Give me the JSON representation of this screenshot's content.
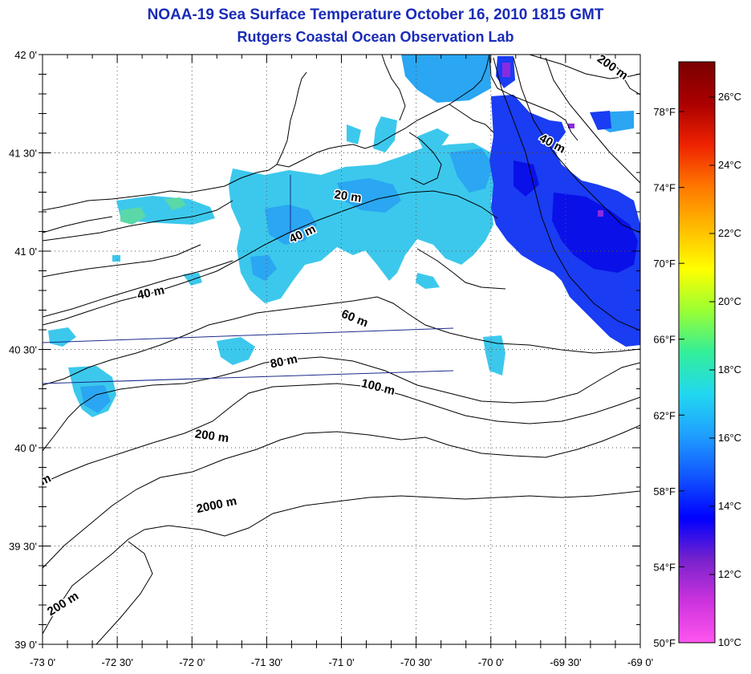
{
  "header": {
    "title": "NOAA-19 Sea Surface Temperature October 16, 2010 1815 GMT",
    "subtitle": "Rutgers Coastal Ocean Observation Lab"
  },
  "map": {
    "lon_range": [
      -73.0,
      -69.0
    ],
    "lat_range": [
      39.0,
      42.0
    ],
    "grid": "dotted",
    "lat_labels": [
      {
        "lat": 42.0,
        "text": "42 0'"
      },
      {
        "lat": 41.5,
        "text": "41 30'"
      },
      {
        "lat": 41.0,
        "text": "41 0'"
      },
      {
        "lat": 40.5,
        "text": "40 30'"
      },
      {
        "lat": 40.0,
        "text": "40 0'"
      },
      {
        "lat": 39.5,
        "text": "39 30'"
      },
      {
        "lat": 39.0,
        "text": "39 0'"
      }
    ],
    "lon_labels": [
      {
        "lon": -73.0,
        "text": "-73 0'"
      },
      {
        "lon": -72.5,
        "text": "-72 30'"
      },
      {
        "lon": -72.0,
        "text": "-72 0'"
      },
      {
        "lon": -71.5,
        "text": "-71 30'"
      },
      {
        "lon": -71.0,
        "text": "-71 0'"
      },
      {
        "lon": -70.5,
        "text": "-70 30'"
      },
      {
        "lon": -70.0,
        "text": "-70 0'"
      },
      {
        "lon": -69.5,
        "text": "-69 30'"
      },
      {
        "lon": -69.0,
        "text": "-69 0'"
      }
    ],
    "depth_labels": [
      {
        "text": "200 m",
        "lon": -69.2,
        "lat": 41.92,
        "rot": 35
      },
      {
        "text": "40 m",
        "lon": -69.6,
        "lat": 41.53,
        "rot": 28
      },
      {
        "text": "20 m",
        "lon": -70.96,
        "lat": 41.26,
        "rot": 8
      },
      {
        "text": "40 m",
        "lon": -71.25,
        "lat": 41.07,
        "rot": -25
      },
      {
        "text": "40 m",
        "lon": -72.27,
        "lat": 40.77,
        "rot": -12
      },
      {
        "text": "60 m",
        "lon": -70.92,
        "lat": 40.64,
        "rot": 22
      },
      {
        "text": "80 m",
        "lon": -71.38,
        "lat": 40.42,
        "rot": -12
      },
      {
        "text": "100 m",
        "lon": -70.76,
        "lat": 40.29,
        "rot": 14
      },
      {
        "text": "200 m",
        "lon": -71.87,
        "lat": 40.04,
        "rot": 8
      },
      {
        "text": "2000 m",
        "lon": -71.83,
        "lat": 39.69,
        "rot": -12
      },
      {
        "text": "200 m",
        "lon": -72.85,
        "lat": 39.19,
        "rot": -32
      },
      {
        "text": "m",
        "lon": -72.97,
        "lat": 39.82,
        "rot": -25
      }
    ]
  },
  "colorbar": {
    "celsius_labels": [
      "26°C",
      "24°C",
      "22°C",
      "20°C",
      "18°C",
      "16°C",
      "14°C",
      "12°C",
      "10°C"
    ],
    "fahrenheit_labels": [
      "78°F",
      "74°F",
      "70°F",
      "66°F",
      "62°F",
      "58°F",
      "54°F",
      "50°F"
    ],
    "colors": [
      "#ff55ee",
      "#cc33dd",
      "#7722cc",
      "#0000ff",
      "#1155ff",
      "#1f9fff",
      "#22d8f0",
      "#33ee99",
      "#99ff33",
      "#ffff00",
      "#ffbb00",
      "#ff7700",
      "#ee2200",
      "#aa0000",
      "#7a0000"
    ]
  }
}
